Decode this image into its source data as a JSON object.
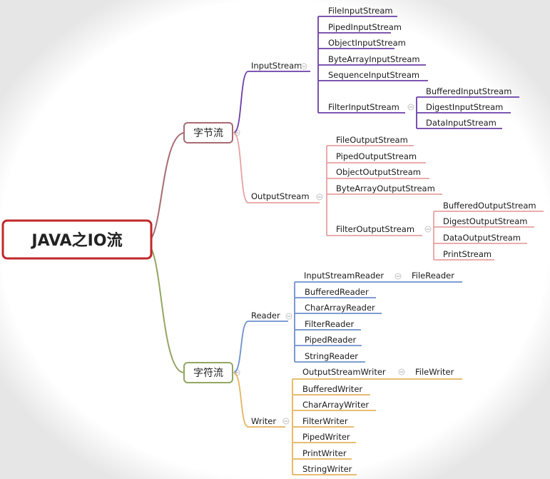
{
  "root": {
    "label": "JAVA之IO流"
  },
  "byte_stream": {
    "label": "字节流",
    "input": {
      "label": "InputStream",
      "items": [
        "FileInputStream",
        "PipedInputStream",
        "ObjectInputStream",
        "ByteArrayInputStream",
        "SequenceInputStream"
      ],
      "filter": {
        "label": "FilterInputStream",
        "items": [
          "BufferedInputStream",
          "DigestInputStream",
          "DataInputStream"
        ]
      }
    },
    "output": {
      "label": "OutputStream",
      "items": [
        "FileOutputStream",
        "PipedOutputStream",
        "ObjectOutputStream",
        "ByteArrayOutputStream"
      ],
      "filter": {
        "label": "FilterOutputStream",
        "items": [
          "BufferedOutputStream",
          "DigestOutputStream",
          "DataOutputStream",
          "PrintStream"
        ]
      }
    }
  },
  "char_stream": {
    "label": "字符流",
    "reader": {
      "label": "Reader",
      "bridge": {
        "label": "InputStreamReader",
        "child": "FileReader"
      },
      "items": [
        "BufferedReader",
        "CharArrayReader",
        "FilterReader",
        "PipedReader",
        "StringReader"
      ]
    },
    "writer": {
      "label": "Writer",
      "bridge": {
        "label": "OutputStreamWriter",
        "child": "FileWriter"
      },
      "items": [
        "BufferedWriter",
        "CharArrayWriter",
        "FilterWriter",
        "PipedWriter",
        "PrintWriter",
        "StringWriter"
      ]
    }
  },
  "colors": {
    "root_border": "#c0292b",
    "byte_branch": "#a86b73",
    "char_branch": "#93a664",
    "input_stream": "#6b3fa8",
    "output_stream": "#e8a0a0",
    "reader": "#6e8fcb",
    "writer": "#e5b35c"
  }
}
